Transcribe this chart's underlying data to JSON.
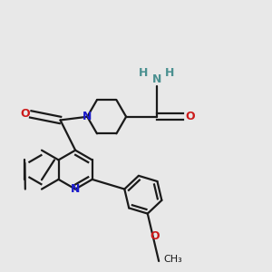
{
  "bg_color": "#e8e8e8",
  "bond_color": "#1a1a1a",
  "N_color": "#1a1acc",
  "O_color": "#cc1a1a",
  "H_color": "#4a9090",
  "linewidth": 1.6,
  "figsize": [
    3.0,
    3.0
  ],
  "dpi": 100,
  "xlim": [
    -2.5,
    5.5
  ],
  "ylim": [
    -4.5,
    3.5
  ]
}
